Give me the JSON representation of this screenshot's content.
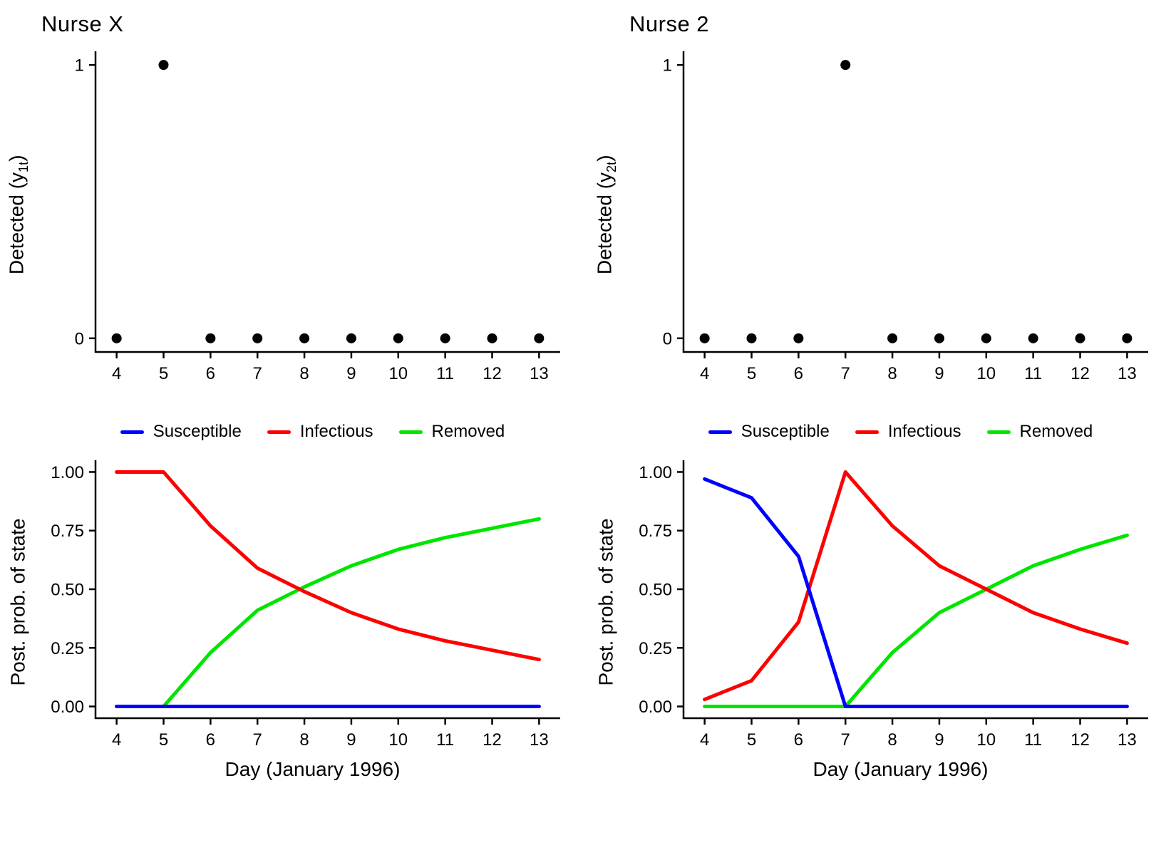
{
  "page": {
    "background": "#ffffff"
  },
  "colors": {
    "susceptible": "#0000FF",
    "infectious": "#FF0000",
    "removed": "#00E500",
    "point": "#000000",
    "axis": "#000000"
  },
  "chart_data": "see charts",
  "charts": [
    {
      "id": "nurse-x-detected",
      "type": "scatter",
      "title": "Nurse X",
      "ylabel": {
        "pre": "Detected (y",
        "sub": "1t",
        "post": ")"
      },
      "xlabel": "",
      "x": [
        4,
        5,
        6,
        7,
        8,
        9,
        10,
        11,
        12,
        13
      ],
      "y": [
        0,
        1,
        0,
        0,
        0,
        0,
        0,
        0,
        0,
        0
      ],
      "xticks": [
        4,
        5,
        6,
        7,
        8,
        9,
        10,
        11,
        12,
        13
      ],
      "yticks": [
        0,
        1
      ],
      "ytick_labels": [
        "0",
        "1"
      ],
      "ylim": [
        0,
        1
      ],
      "grid": false
    },
    {
      "id": "nurse-2-detected",
      "type": "scatter",
      "title": "Nurse 2",
      "ylabel": {
        "pre": "Detected (y",
        "sub": "2t",
        "post": ")"
      },
      "xlabel": "",
      "x": [
        4,
        5,
        6,
        7,
        8,
        9,
        10,
        11,
        12,
        13
      ],
      "y": [
        0,
        0,
        0,
        1,
        0,
        0,
        0,
        0,
        0,
        0
      ],
      "xticks": [
        4,
        5,
        6,
        7,
        8,
        9,
        10,
        11,
        12,
        13
      ],
      "yticks": [
        0,
        1
      ],
      "ytick_labels": [
        "0",
        "1"
      ],
      "ylim": [
        0,
        1
      ],
      "grid": false
    },
    {
      "id": "nurse-x-state-prob",
      "type": "line",
      "title": "",
      "ylabel": {
        "pre": "Post. prob. of state",
        "sub": "",
        "post": ""
      },
      "xlabel": "Day (January 1996)",
      "x": [
        4,
        5,
        6,
        7,
        8,
        9,
        10,
        11,
        12,
        13
      ],
      "series": [
        {
          "name": "Susceptible",
          "color_key": "susceptible",
          "values": [
            0,
            0,
            0,
            0,
            0,
            0,
            0,
            0,
            0,
            0
          ]
        },
        {
          "name": "Infectious",
          "color_key": "infectious",
          "values": [
            1.0,
            1.0,
            0.77,
            0.59,
            0.49,
            0.4,
            0.33,
            0.28,
            0.24,
            0.2
          ]
        },
        {
          "name": "Removed",
          "color_key": "removed",
          "values": [
            0,
            0,
            0.23,
            0.41,
            0.51,
            0.6,
            0.67,
            0.72,
            0.76,
            0.8
          ]
        }
      ],
      "draw_order": [
        2,
        1,
        0
      ],
      "xticks": [
        4,
        5,
        6,
        7,
        8,
        9,
        10,
        11,
        12,
        13
      ],
      "yticks": [
        0,
        0.25,
        0.5,
        0.75,
        1
      ],
      "ytick_labels": [
        "0.00",
        "0.25",
        "0.50",
        "0.75",
        "1.00"
      ],
      "ylim": [
        0,
        1
      ],
      "legend_position": "top",
      "grid": false
    },
    {
      "id": "nurse-2-state-prob",
      "type": "line",
      "title": "",
      "ylabel": {
        "pre": "Post. prob. of state",
        "sub": "",
        "post": ""
      },
      "xlabel": "Day (January 1996)",
      "x": [
        4,
        5,
        6,
        7,
        8,
        9,
        10,
        11,
        12,
        13
      ],
      "series": [
        {
          "name": "Susceptible",
          "color_key": "susceptible",
          "values": [
            0.97,
            0.89,
            0.64,
            0,
            0,
            0,
            0,
            0,
            0,
            0
          ]
        },
        {
          "name": "Infectious",
          "color_key": "infectious",
          "values": [
            0.03,
            0.11,
            0.36,
            1.0,
            0.77,
            0.6,
            0.5,
            0.4,
            0.33,
            0.27
          ]
        },
        {
          "name": "Removed",
          "color_key": "removed",
          "values": [
            0,
            0,
            0,
            0,
            0.23,
            0.4,
            0.5,
            0.6,
            0.67,
            0.73
          ]
        }
      ],
      "draw_order": [
        2,
        1,
        0
      ],
      "xticks": [
        4,
        5,
        6,
        7,
        8,
        9,
        10,
        11,
        12,
        13
      ],
      "yticks": [
        0,
        0.25,
        0.5,
        0.75,
        1
      ],
      "ytick_labels": [
        "0.00",
        "0.25",
        "0.50",
        "0.75",
        "1.00"
      ],
      "ylim": [
        0,
        1
      ],
      "legend_position": "top",
      "grid": false
    }
  ]
}
